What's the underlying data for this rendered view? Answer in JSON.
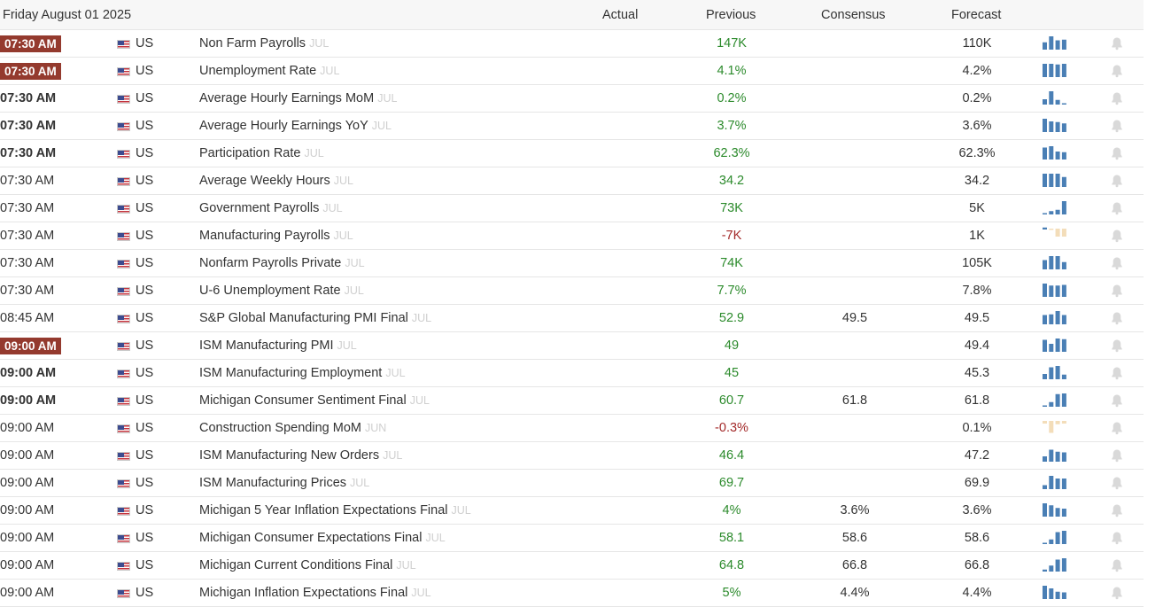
{
  "header": {
    "date": "Friday August 01 2025",
    "columns": {
      "actual": "Actual",
      "previous": "Previous",
      "consensus": "Consensus",
      "forecast": "Forecast"
    }
  },
  "colors": {
    "highlight_time_bg": "#943a2e",
    "positive": "#2b8a2b",
    "negative": "#a32a2a",
    "bar_blue": "#4a7fb5",
    "bar_orange": "#f3ddb9"
  },
  "rows": [
    {
      "time": "07:30 AM",
      "style": "hi",
      "country": "US",
      "event": "Non Farm Payrolls",
      "period": "JUL",
      "previous": "147K",
      "prev_dir": "pos",
      "consensus": "",
      "forecast": "110K",
      "spark": [
        0.55,
        1,
        0.7,
        0.75
      ]
    },
    {
      "time": "07:30 AM",
      "style": "hi",
      "country": "US",
      "event": "Unemployment Rate",
      "period": "JUL",
      "previous": "4.1%",
      "prev_dir": "pos",
      "consensus": "",
      "forecast": "4.2%",
      "spark": [
        1,
        1,
        0.95,
        1
      ]
    },
    {
      "time": "07:30 AM",
      "style": "bold",
      "country": "US",
      "event": "Average Hourly Earnings MoM",
      "period": "JUL",
      "previous": "0.2%",
      "prev_dir": "pos",
      "consensus": "",
      "forecast": "0.2%",
      "spark": [
        0.4,
        1,
        0.35,
        0.1
      ]
    },
    {
      "time": "07:30 AM",
      "style": "bold",
      "country": "US",
      "event": "Average Hourly Earnings YoY",
      "period": "JUL",
      "previous": "3.7%",
      "prev_dir": "pos",
      "consensus": "",
      "forecast": "3.6%",
      "spark": [
        1,
        0.8,
        0.75,
        0.65
      ]
    },
    {
      "time": "07:30 AM",
      "style": "bold",
      "country": "US",
      "event": "Participation Rate",
      "period": "JUL",
      "previous": "62.3%",
      "prev_dir": "pos",
      "consensus": "",
      "forecast": "62.3%",
      "spark": [
        0.9,
        1,
        0.6,
        0.55
      ]
    },
    {
      "time": "07:30 AM",
      "style": "normal",
      "country": "US",
      "event": "Average Weekly Hours",
      "period": "JUL",
      "previous": "34.2",
      "prev_dir": "pos",
      "consensus": "",
      "forecast": "34.2",
      "spark": [
        1,
        1,
        1,
        0.75
      ]
    },
    {
      "time": "07:30 AM",
      "style": "normal",
      "country": "US",
      "event": "Government Payrolls",
      "period": "JUL",
      "previous": "73K",
      "prev_dir": "pos",
      "consensus": "",
      "forecast": "5K",
      "spark": [
        0.1,
        0.25,
        0.35,
        1
      ]
    },
    {
      "time": "07:30 AM",
      "style": "normal",
      "country": "US",
      "event": "Manufacturing Payrolls",
      "period": "JUL",
      "previous": "-7K",
      "prev_dir": "neg",
      "consensus": "",
      "forecast": "1K",
      "spark": [
        0.15,
        -0.1,
        -0.6,
        -0.6
      ]
    },
    {
      "time": "07:30 AM",
      "style": "normal",
      "country": "US",
      "event": "Nonfarm Payrolls Private",
      "period": "JUL",
      "previous": "74K",
      "prev_dir": "pos",
      "consensus": "",
      "forecast": "105K",
      "spark": [
        0.7,
        1,
        1,
        0.55
      ]
    },
    {
      "time": "07:30 AM",
      "style": "normal",
      "country": "US",
      "event": "U-6 Unemployment Rate",
      "period": "JUL",
      "previous": "7.7%",
      "prev_dir": "pos",
      "consensus": "",
      "forecast": "7.8%",
      "spark": [
        1,
        0.85,
        0.85,
        0.9
      ]
    },
    {
      "time": "08:45 AM",
      "style": "normal",
      "country": "US",
      "event": "S&P Global Manufacturing PMI Final",
      "period": "JUL",
      "previous": "52.9",
      "prev_dir": "pos",
      "consensus": "49.5",
      "forecast": "49.5",
      "spark": [
        0.7,
        0.75,
        1,
        0.7
      ]
    },
    {
      "time": "09:00 AM",
      "style": "hi",
      "country": "US",
      "event": "ISM Manufacturing PMI",
      "period": "JUL",
      "previous": "49",
      "prev_dir": "pos",
      "consensus": "",
      "forecast": "49.4",
      "spark": [
        0.9,
        0.6,
        1,
        0.95
      ]
    },
    {
      "time": "09:00 AM",
      "style": "bold",
      "country": "US",
      "event": "ISM Manufacturing Employment",
      "period": "JUL",
      "previous": "45",
      "prev_dir": "pos",
      "consensus": "",
      "forecast": "45.3",
      "spark": [
        0.4,
        0.9,
        1,
        0.35
      ]
    },
    {
      "time": "09:00 AM",
      "style": "bold",
      "country": "US",
      "event": "Michigan Consumer Sentiment Final",
      "period": "JUL",
      "previous": "60.7",
      "prev_dir": "pos",
      "consensus": "61.8",
      "forecast": "61.8",
      "spark": [
        0.1,
        0.35,
        0.95,
        1
      ]
    },
    {
      "time": "09:00 AM",
      "style": "normal",
      "country": "US",
      "event": "Construction Spending MoM",
      "period": "JUN",
      "previous": "-0.3%",
      "prev_dir": "neg",
      "consensus": "",
      "forecast": "0.1%",
      "spark": [
        -0.2,
        -0.9,
        -0.25,
        -0.2
      ]
    },
    {
      "time": "09:00 AM",
      "style": "normal",
      "country": "US",
      "event": "ISM Manufacturing New Orders",
      "period": "JUL",
      "previous": "46.4",
      "prev_dir": "pos",
      "consensus": "",
      "forecast": "47.2",
      "spark": [
        0.4,
        0.9,
        0.75,
        0.7
      ]
    },
    {
      "time": "09:00 AM",
      "style": "normal",
      "country": "US",
      "event": "ISM Manufacturing Prices",
      "period": "JUL",
      "previous": "69.7",
      "prev_dir": "pos",
      "consensus": "",
      "forecast": "69.9",
      "spark": [
        0.3,
        1,
        0.8,
        0.8
      ]
    },
    {
      "time": "09:00 AM",
      "style": "normal",
      "country": "US",
      "event": "Michigan 5 Year Inflation Expectations Final",
      "period": "JUL",
      "previous": "4%",
      "prev_dir": "pos",
      "consensus": "3.6%",
      "forecast": "3.6%",
      "spark": [
        1,
        0.85,
        0.65,
        0.6
      ]
    },
    {
      "time": "09:00 AM",
      "style": "normal",
      "country": "US",
      "event": "Michigan Consumer Expectations Final",
      "period": "JUL",
      "previous": "58.1",
      "prev_dir": "pos",
      "consensus": "58.6",
      "forecast": "58.6",
      "spark": [
        0.1,
        0.35,
        0.9,
        1
      ]
    },
    {
      "time": "09:00 AM",
      "style": "normal",
      "country": "US",
      "event": "Michigan Current Conditions Final",
      "period": "JUL",
      "previous": "64.8",
      "prev_dir": "pos",
      "consensus": "66.8",
      "forecast": "66.8",
      "spark": [
        0.15,
        0.45,
        0.9,
        1
      ]
    },
    {
      "time": "09:00 AM",
      "style": "normal",
      "country": "US",
      "event": "Michigan Inflation Expectations Final",
      "period": "JUL",
      "previous": "5%",
      "prev_dir": "pos",
      "consensus": "4.4%",
      "forecast": "4.4%",
      "spark": [
        1,
        0.8,
        0.55,
        0.5
      ]
    }
  ]
}
